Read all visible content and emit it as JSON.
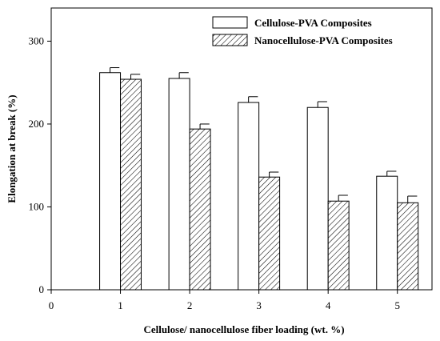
{
  "chart_data": {
    "type": "bar",
    "title": "",
    "xlabel": "Cellulose/ nanocellulose fiber loading (wt. %)",
    "ylabel": "Elongation at break (%)",
    "x_ticks": [
      "0",
      "1",
      "2",
      "3",
      "4",
      "5"
    ],
    "categories": [
      "1",
      "2",
      "3",
      "4",
      "5"
    ],
    "xlim": [
      0,
      5.5
    ],
    "ylim": [
      0,
      340
    ],
    "y_ticks": [
      0,
      100,
      200,
      300
    ],
    "grid": false,
    "legend_position": "top-right",
    "series": [
      {
        "name": "Cellulose-PVA Composites",
        "values": [
          262,
          255,
          226,
          220,
          137
        ],
        "errors": [
          6,
          7,
          7,
          7,
          6
        ],
        "fill": "white"
      },
      {
        "name": "Nanocellulose-PVA Composites",
        "values": [
          254,
          194,
          136,
          107,
          105
        ],
        "errors": [
          6,
          6,
          6,
          7,
          8
        ],
        "fill": "hatched"
      }
    ]
  }
}
